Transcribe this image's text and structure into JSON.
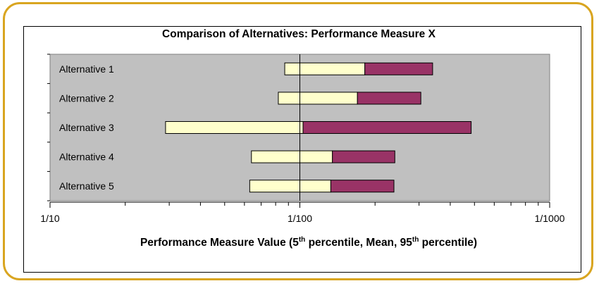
{
  "chart_data": {
    "type": "bar",
    "title": "Comparison of Alternatives: Performance Measure X",
    "xlabel": {
      "parts": [
        "Performance Measure Value (5",
        "th",
        " percentile, Mean, 95",
        "th",
        " percentile)"
      ]
    },
    "x_scale": "log-reciprocal",
    "x_axis_direction": "values decrease left to right",
    "xlim": [
      "1/10",
      "1/1000"
    ],
    "x_ticks": [
      {
        "label": "1/10",
        "value": 0.1
      },
      {
        "label": "1/100",
        "value": 0.01
      },
      {
        "label": "1/1000",
        "value": 0.001
      }
    ],
    "reference_line": "1/100",
    "categories": [
      "Alternative 1",
      "Alternative 2",
      "Alternative 3",
      "Alternative 4",
      "Alternative 5"
    ],
    "series": [
      {
        "role": "5th percentile",
        "values": [
          "1/87",
          "1/82",
          "1/29",
          "1/64",
          "1/63"
        ]
      },
      {
        "role": "mean",
        "values": [
          "1/182",
          "1/170",
          "1/103",
          "1/135",
          "1/133"
        ]
      },
      {
        "role": "95th percentile",
        "values": [
          "1/340",
          "1/305",
          "1/485",
          "1/240",
          "1/238"
        ]
      }
    ],
    "colors": {
      "lower_segment": "#ffffcc",
      "upper_segment": "#993366",
      "plot_background": "#c0c0c0",
      "frame_border": "#d9a520"
    },
    "legend": "none",
    "grid": false
  }
}
